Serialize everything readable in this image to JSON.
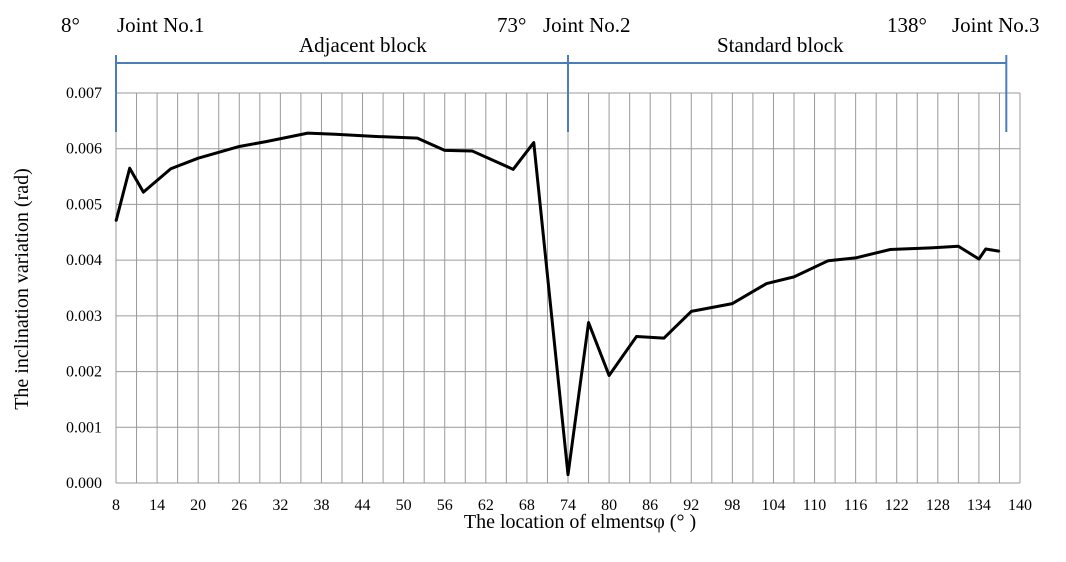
{
  "chart_data": {
    "type": "line",
    "xlabel": "The location of elmentsφ (°  )",
    "ylabel": "The inclination variation (rad)",
    "xlim": [
      8,
      140
    ],
    "ylim": [
      0,
      0.007
    ],
    "grid": true,
    "x_ticks": [
      8,
      14,
      20,
      26,
      32,
      38,
      44,
      50,
      56,
      62,
      68,
      74,
      80,
      86,
      92,
      98,
      104,
      110,
      116,
      122,
      128,
      134,
      140
    ],
    "y_ticks": [
      "0.000",
      "0.001",
      "0.002",
      "0.003",
      "0.004",
      "0.005",
      "0.006",
      "0.007"
    ],
    "series": [
      {
        "x": [
          8,
          10,
          12,
          16,
          20,
          26,
          30,
          36,
          40,
          46,
          52,
          56,
          60,
          66,
          69,
          74,
          77,
          80,
          84,
          88,
          92,
          98,
          103,
          107,
          112,
          116,
          121,
          127,
          131,
          134,
          135,
          137
        ],
        "y": [
          0.0047,
          0.00565,
          0.00522,
          0.00564,
          0.00583,
          0.00604,
          0.00613,
          0.00628,
          0.00626,
          0.00622,
          0.00619,
          0.00597,
          0.00596,
          0.00563,
          0.00611,
          0.00015,
          0.00288,
          0.00193,
          0.00263,
          0.0026,
          0.00308,
          0.00322,
          0.00358,
          0.0037,
          0.00399,
          0.00404,
          0.00419,
          0.00422,
          0.00425,
          0.00402,
          0.0042,
          0.00416
        ],
        "color": "#000000"
      }
    ],
    "annotations": {
      "joint1": "Joint No.1",
      "joint2": "Joint No.2",
      "joint3": "Joint No.3",
      "deg8": "8°",
      "deg73": "73°",
      "deg138": "138°",
      "adjacent": "Adjacent block",
      "standard": "Standard block",
      "joint_positions": [
        8,
        74,
        138
      ],
      "line_color": "#4a7ebb"
    }
  }
}
